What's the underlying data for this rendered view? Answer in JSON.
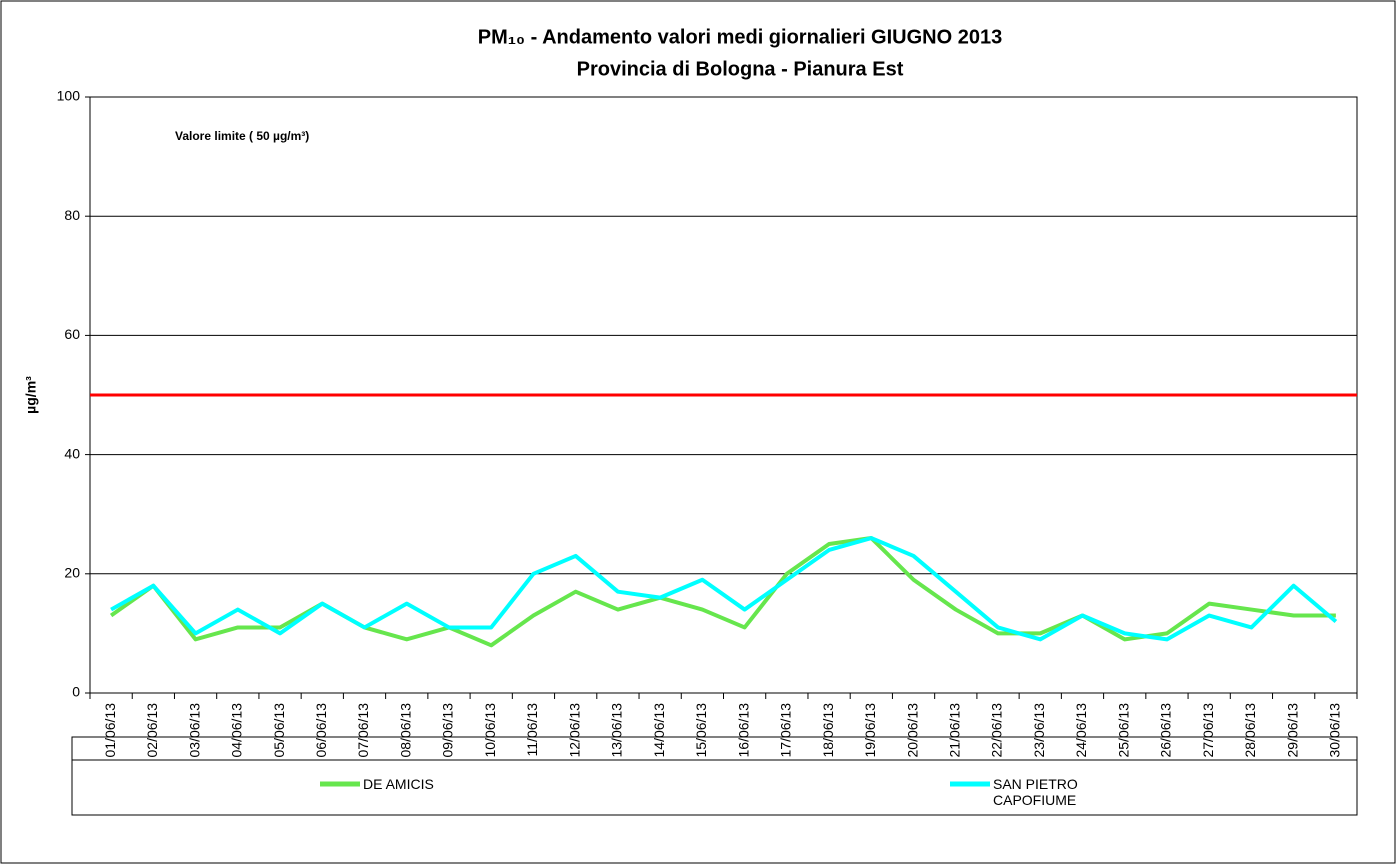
{
  "chart_data": {
    "type": "line",
    "title": "PM₁₀ - Andamento valori medi giornalieri GIUGNO 2013",
    "subtitle": "Provincia di Bologna - Pianura Est",
    "y_label": "µg/m³",
    "annotation": "Valore limite  ( 50 µg/m³)",
    "threshold": {
      "value": 50,
      "color": "#ff0000"
    },
    "categories": [
      "01/06/13",
      "02/06/13",
      "03/06/13",
      "04/06/13",
      "05/06/13",
      "06/06/13",
      "07/06/13",
      "08/06/13",
      "09/06/13",
      "10/06/13",
      "11/06/13",
      "12/06/13",
      "13/06/13",
      "14/06/13",
      "15/06/13",
      "16/06/13",
      "17/06/13",
      "18/06/13",
      "19/06/13",
      "20/06/13",
      "21/06/13",
      "22/06/13",
      "23/06/13",
      "24/06/13",
      "25/06/13",
      "26/06/13",
      "27/06/13",
      "28/06/13",
      "29/06/13",
      "30/06/13"
    ],
    "series": [
      {
        "name": "DE AMICIS",
        "color": "#66e64d",
        "values": [
          13,
          18,
          9,
          11,
          11,
          15,
          11,
          9,
          11,
          8,
          13,
          17,
          14,
          16,
          14,
          11,
          20,
          25,
          26,
          19,
          14,
          10,
          10,
          13,
          9,
          10,
          15,
          14,
          13,
          13
        ]
      },
      {
        "name": "SAN PIETRO CAPOFIUME",
        "color": "#00ffff",
        "values": [
          14,
          18,
          10,
          14,
          10,
          15,
          11,
          15,
          11,
          11,
          20,
          23,
          17,
          16,
          19,
          14,
          19,
          24,
          26,
          23,
          17,
          11,
          9,
          13,
          10,
          9,
          13,
          11,
          18,
          12
        ]
      }
    ],
    "ylim": [
      0,
      100
    ],
    "yticks": [
      0,
      20,
      40,
      60,
      80,
      100
    ],
    "grid": true
  }
}
